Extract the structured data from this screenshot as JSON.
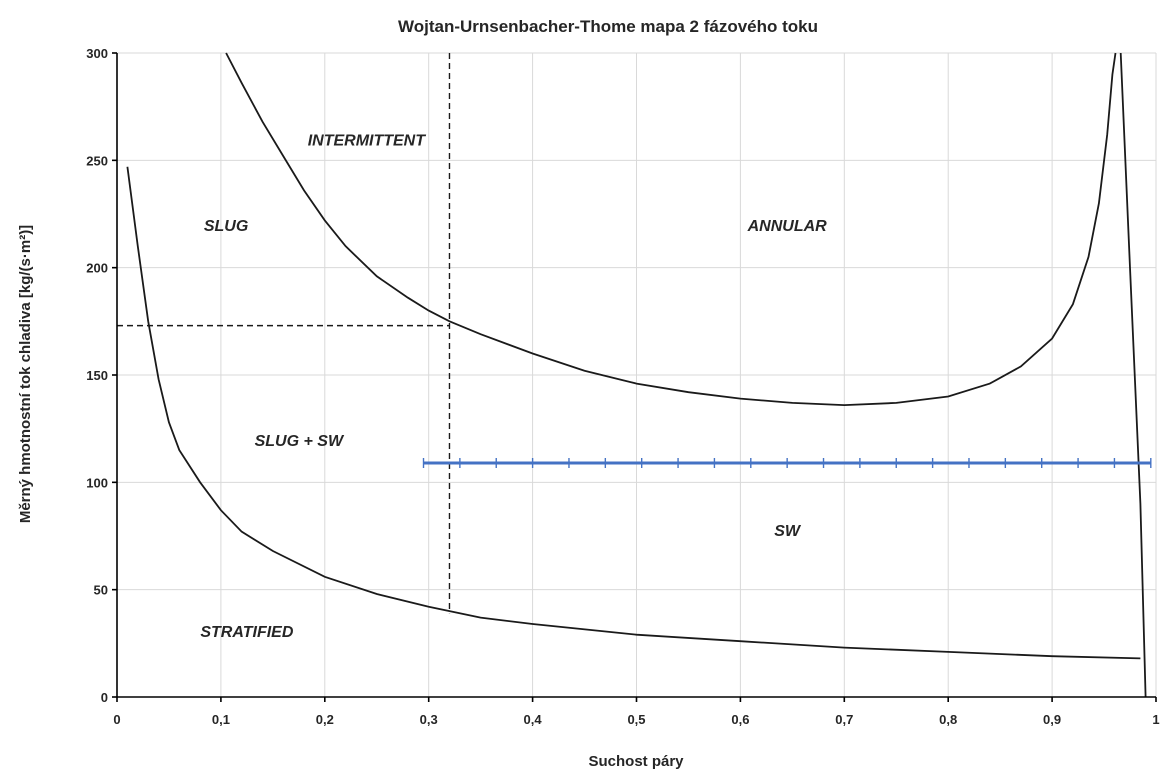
{
  "chart_data": {
    "type": "line",
    "title": "Wojtan-Urnsenbacher-Thome mapa 2 fázového toku",
    "xlabel": "Suchost páry",
    "ylabel": "Měrný hmotnostní tok chladiva [kg/(s·m²)]",
    "xlim": [
      0,
      1
    ],
    "ylim": [
      0,
      300
    ],
    "x_ticks": [
      0,
      0.1,
      0.2,
      0.3,
      0.4,
      0.5,
      0.6,
      0.7,
      0.8,
      0.9,
      1
    ],
    "x_tick_labels": [
      "0",
      "0,1",
      "0,2",
      "0,3",
      "0,4",
      "0,5",
      "0,6",
      "0,7",
      "0,8",
      "0,9",
      "1"
    ],
    "y_ticks": [
      0,
      50,
      100,
      150,
      200,
      250,
      300
    ],
    "y_tick_labels": [
      "0",
      "50",
      "100",
      "150",
      "200",
      "250",
      "300"
    ],
    "grid": true,
    "legend": "none",
    "series": [
      {
        "color": "#1a1a1a",
        "points": [
          [
            0.105,
            300
          ],
          [
            0.12,
            286
          ],
          [
            0.14,
            268
          ],
          [
            0.16,
            252
          ],
          [
            0.18,
            236
          ],
          [
            0.2,
            222
          ],
          [
            0.22,
            210
          ],
          [
            0.25,
            196
          ],
          [
            0.28,
            186
          ],
          [
            0.3,
            180
          ],
          [
            0.32,
            175
          ],
          [
            0.35,
            169
          ],
          [
            0.4,
            160
          ],
          [
            0.45,
            152
          ],
          [
            0.5,
            146
          ],
          [
            0.55,
            142
          ],
          [
            0.6,
            139
          ],
          [
            0.65,
            137
          ],
          [
            0.7,
            136
          ],
          [
            0.75,
            137
          ],
          [
            0.8,
            140
          ],
          [
            0.84,
            146
          ],
          [
            0.87,
            154
          ],
          [
            0.9,
            167
          ],
          [
            0.92,
            183
          ],
          [
            0.935,
            205
          ],
          [
            0.945,
            230
          ],
          [
            0.953,
            262
          ],
          [
            0.958,
            290
          ],
          [
            0.961,
            300
          ]
        ]
      },
      {
        "color": "#1a1a1a",
        "points": [
          [
            0.01,
            247
          ],
          [
            0.02,
            210
          ],
          [
            0.03,
            175
          ],
          [
            0.04,
            148
          ],
          [
            0.05,
            128
          ],
          [
            0.06,
            115
          ],
          [
            0.08,
            100
          ],
          [
            0.1,
            87
          ],
          [
            0.12,
            77
          ],
          [
            0.15,
            68
          ],
          [
            0.2,
            56
          ],
          [
            0.25,
            48
          ],
          [
            0.3,
            42
          ],
          [
            0.35,
            37
          ],
          [
            0.4,
            34
          ],
          [
            0.5,
            29
          ],
          [
            0.6,
            26
          ],
          [
            0.7,
            23
          ],
          [
            0.8,
            21
          ],
          [
            0.9,
            19
          ],
          [
            0.985,
            18
          ]
        ]
      },
      {
        "color": "#1a1a1a",
        "points": [
          [
            0.966,
            300
          ],
          [
            0.975,
            200
          ],
          [
            0.985,
            90
          ],
          [
            0.99,
            0
          ]
        ]
      },
      {
        "color": "#4472c4",
        "markers": true,
        "points": [
          [
            0.295,
            109
          ],
          [
            0.33,
            109
          ],
          [
            0.365,
            109
          ],
          [
            0.4,
            109
          ],
          [
            0.435,
            109
          ],
          [
            0.47,
            109
          ],
          [
            0.505,
            109
          ],
          [
            0.54,
            109
          ],
          [
            0.575,
            109
          ],
          [
            0.61,
            109
          ],
          [
            0.645,
            109
          ],
          [
            0.68,
            109
          ],
          [
            0.715,
            109
          ],
          [
            0.75,
            109
          ],
          [
            0.785,
            109
          ],
          [
            0.82,
            109
          ],
          [
            0.855,
            109
          ],
          [
            0.89,
            109
          ],
          [
            0.925,
            109
          ],
          [
            0.96,
            109
          ],
          [
            0.995,
            109
          ]
        ]
      }
    ],
    "guides": [
      {
        "from": [
          0.32,
          300
        ],
        "to": [
          0.32,
          39
        ],
        "style": "dashed"
      },
      {
        "from": [
          0,
          173
        ],
        "to": [
          0.32,
          173
        ],
        "style": "dashed"
      }
    ],
    "annotations": [
      {
        "text": "INTERMITTENT",
        "x": 0.24,
        "y": 257
      },
      {
        "text": "SLUG",
        "x": 0.105,
        "y": 217
      },
      {
        "text": "ANNULAR",
        "x": 0.645,
        "y": 217
      },
      {
        "text": "SLUG + SW",
        "x": 0.175,
        "y": 117
      },
      {
        "text": "SW",
        "x": 0.645,
        "y": 75
      },
      {
        "text": "STRATIFIED",
        "x": 0.125,
        "y": 28
      }
    ]
  }
}
